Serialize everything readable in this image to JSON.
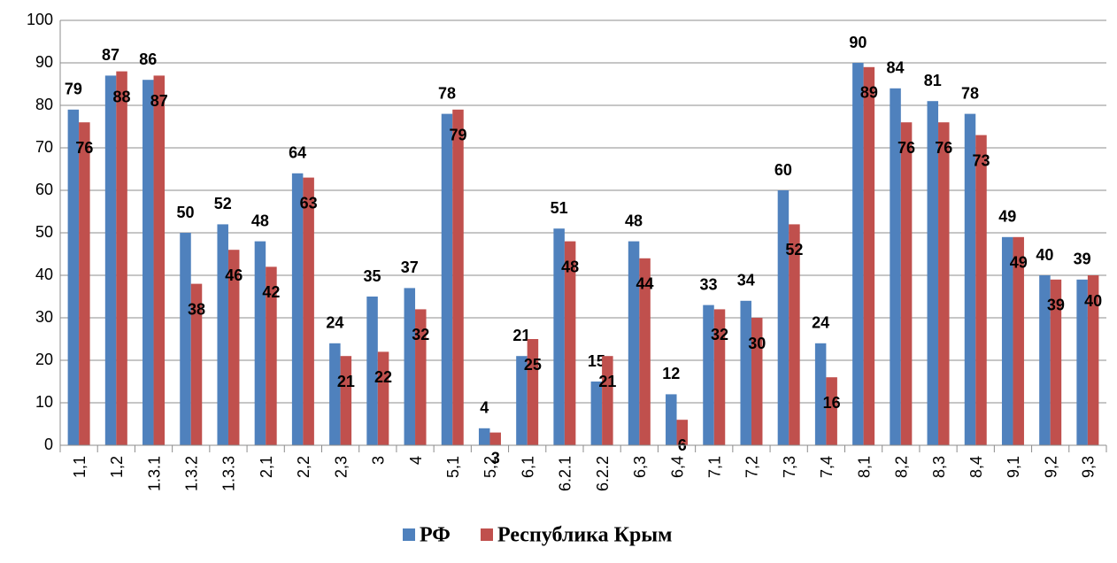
{
  "chart_data": {
    "type": "bar",
    "categories": [
      "1,1",
      "1,2",
      "1.3.1",
      "1.3.2",
      "1.3.3",
      "2,1",
      "2,2",
      "2,3",
      "3",
      "4",
      "5,1",
      "5,2",
      "6,1",
      "6.2.1",
      "6.2.2",
      "6,3",
      "6,4",
      "7,1",
      "7,2",
      "7,3",
      "7,4",
      "8,1",
      "8,2",
      "8,3",
      "8,4",
      "9,1",
      "9,2",
      "9,3"
    ],
    "series": [
      {
        "name": "РФ",
        "color": "#4f81bd",
        "values": [
          79,
          87,
          86,
          50,
          52,
          48,
          64,
          24,
          35,
          37,
          78,
          4,
          21,
          51,
          15,
          48,
          12,
          33,
          34,
          60,
          24,
          90,
          84,
          81,
          78,
          49,
          40,
          39
        ]
      },
      {
        "name": "Республика Крым",
        "color": "#c0504d",
        "values": [
          76,
          88,
          87,
          38,
          46,
          42,
          63,
          21,
          22,
          32,
          79,
          3,
          25,
          48,
          21,
          44,
          6,
          32,
          30,
          52,
          16,
          89,
          76,
          76,
          73,
          49,
          39,
          40
        ]
      }
    ],
    "ylim": [
      0,
      100
    ],
    "yticks": [
      0,
      10,
      20,
      30,
      40,
      50,
      60,
      70,
      80,
      90,
      100
    ],
    "grid": true,
    "legend": "bottom"
  }
}
